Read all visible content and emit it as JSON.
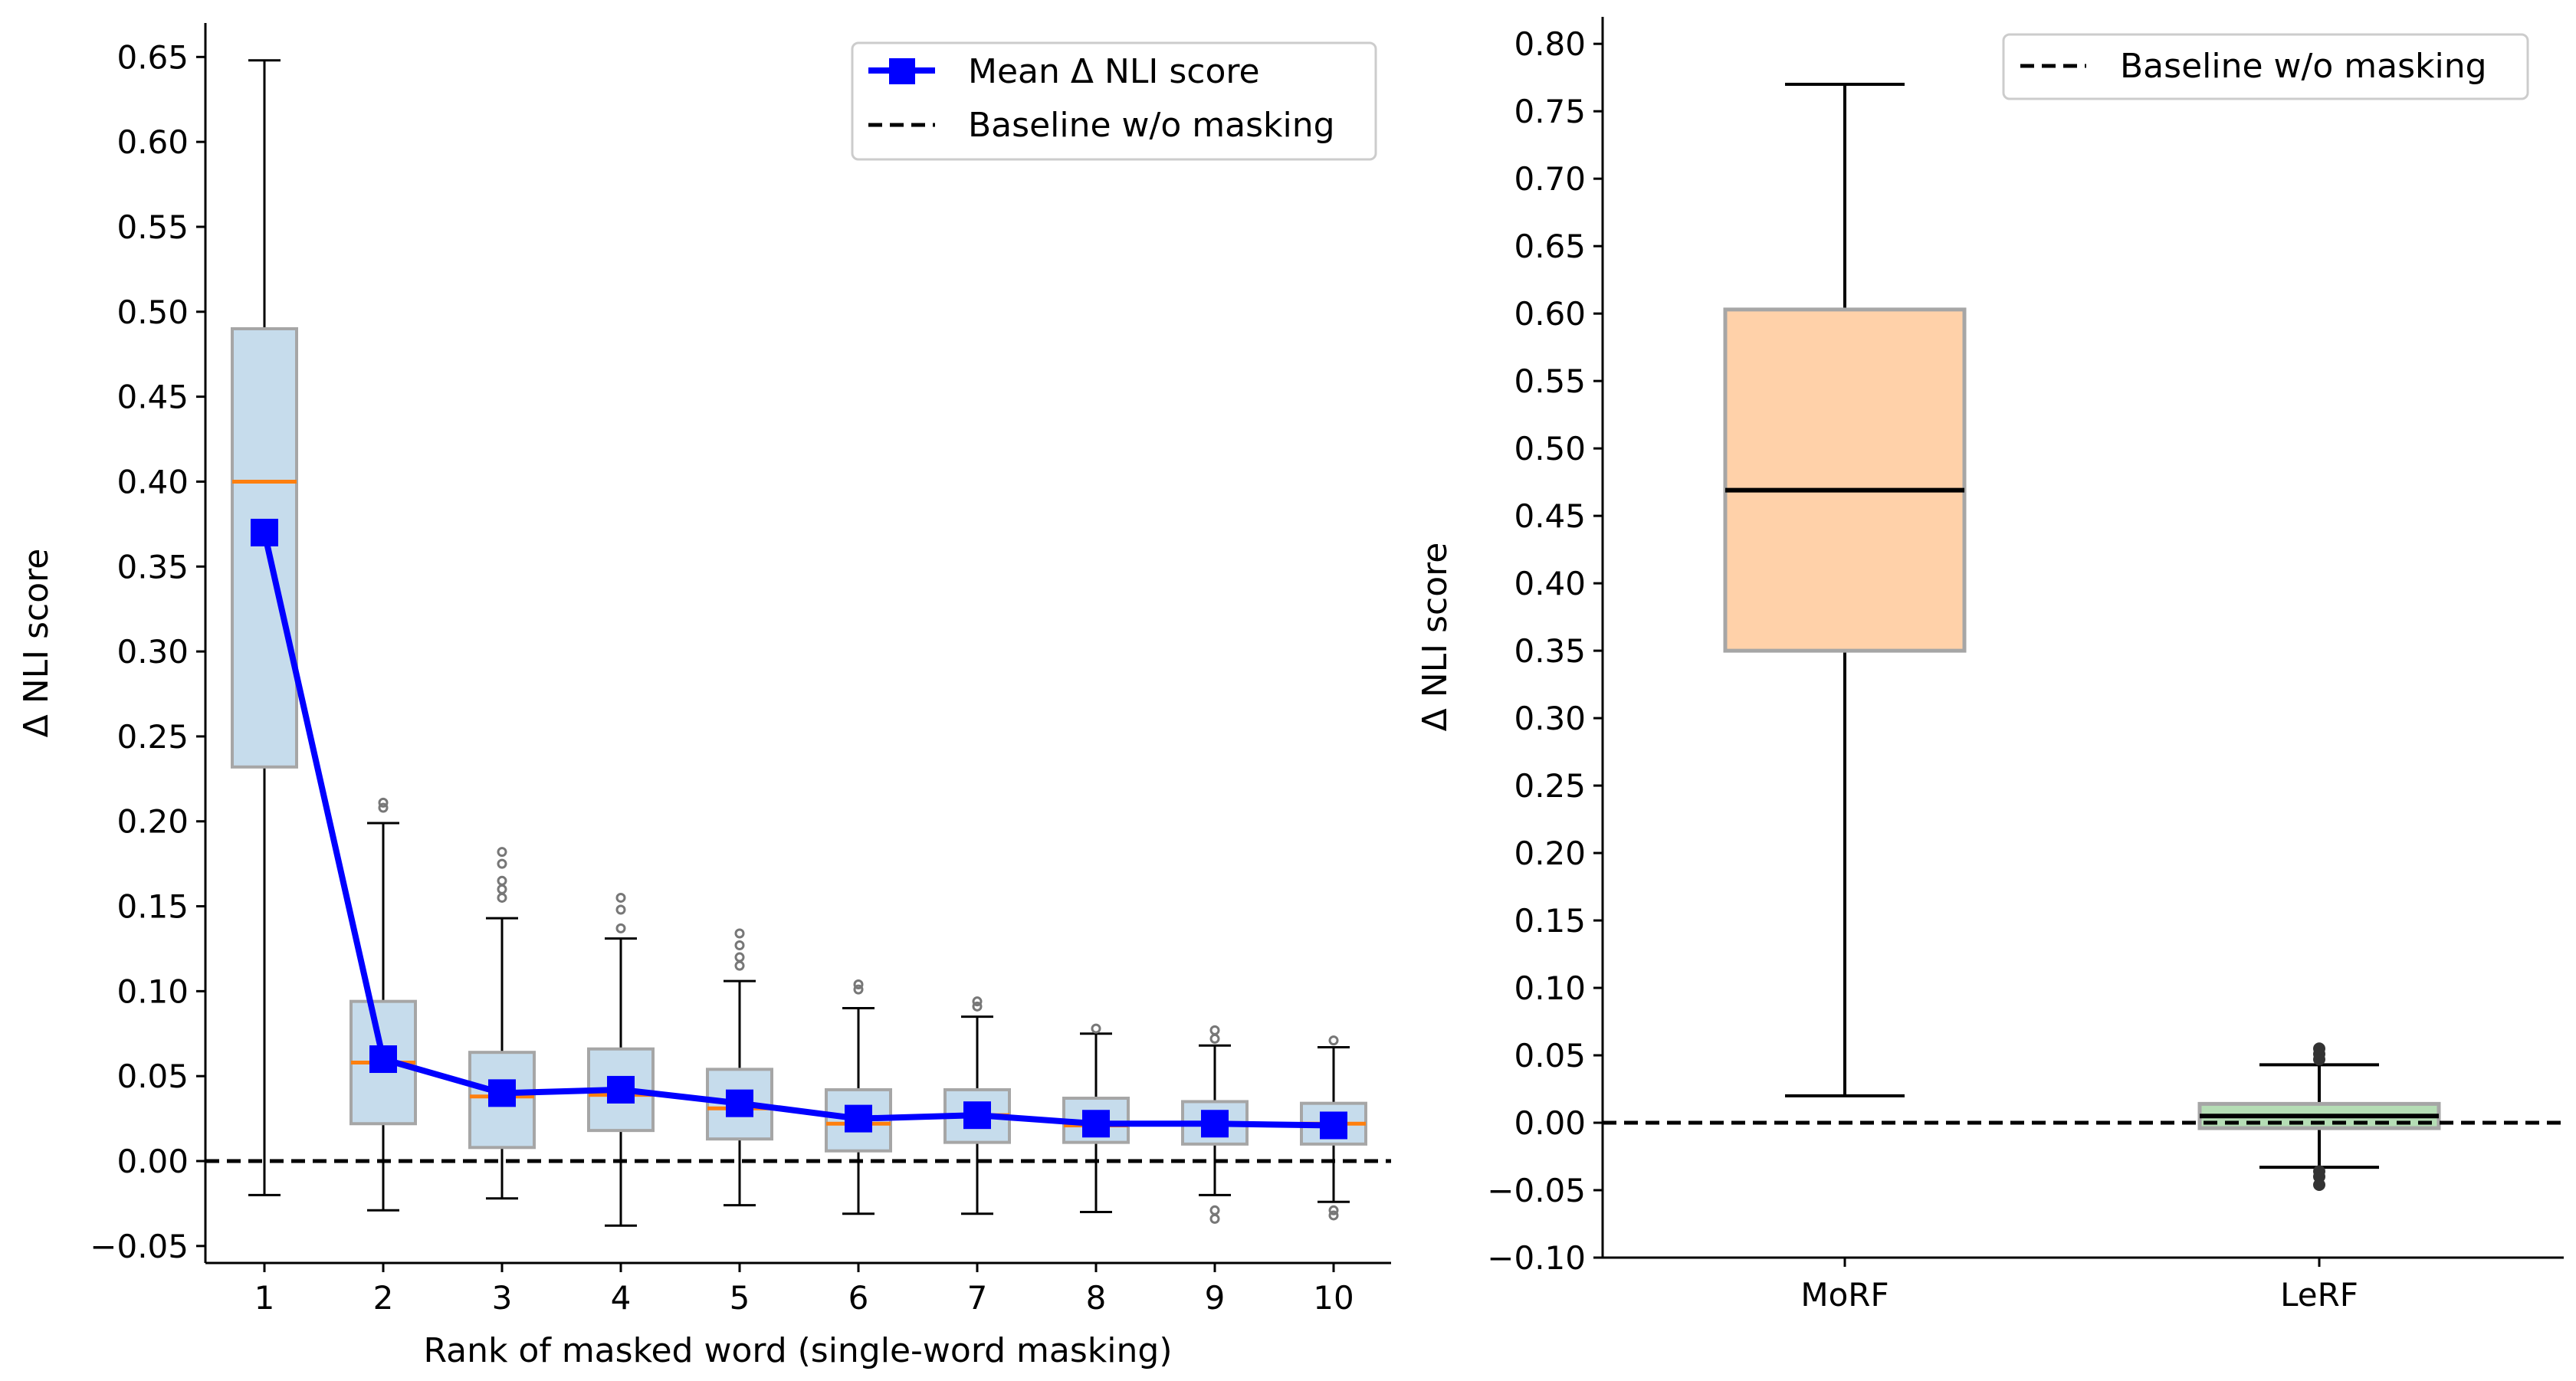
{
  "chart_data": [
    {
      "type": "box",
      "xlabel": "Rank of masked word (single-word masking)",
      "ylabel": "Δ NLI score",
      "ylim": [
        -0.06,
        0.67
      ],
      "yticks": [
        "−0.05",
        "0.00",
        "0.05",
        "0.10",
        "0.15",
        "0.20",
        "0.25",
        "0.30",
        "0.35",
        "0.40",
        "0.45",
        "0.50",
        "0.55",
        "0.60",
        "0.65"
      ],
      "categories": [
        "1",
        "2",
        "3",
        "4",
        "5",
        "6",
        "7",
        "8",
        "9",
        "10"
      ],
      "boxes": [
        {
          "category": "1",
          "whislo": -0.02,
          "q1": 0.232,
          "median": 0.4,
          "q3": 0.49,
          "whishi": 0.648,
          "fliers": []
        },
        {
          "category": "2",
          "whislo": -0.029,
          "q1": 0.022,
          "median": 0.058,
          "q3": 0.094,
          "whishi": 0.199,
          "fliers": [
            0.208,
            0.211
          ]
        },
        {
          "category": "3",
          "whislo": -0.022,
          "q1": 0.008,
          "median": 0.038,
          "q3": 0.064,
          "whishi": 0.143,
          "fliers": [
            0.155,
            0.16,
            0.165,
            0.175,
            0.182
          ]
        },
        {
          "category": "4",
          "whislo": -0.038,
          "q1": 0.018,
          "median": 0.039,
          "q3": 0.066,
          "whishi": 0.131,
          "fliers": [
            0.137,
            0.148,
            0.155
          ]
        },
        {
          "category": "5",
          "whislo": -0.026,
          "q1": 0.013,
          "median": 0.031,
          "q3": 0.054,
          "whishi": 0.106,
          "fliers": [
            0.115,
            0.12,
            0.127,
            0.134
          ]
        },
        {
          "category": "6",
          "whislo": -0.031,
          "q1": 0.006,
          "median": 0.022,
          "q3": 0.042,
          "whishi": 0.09,
          "fliers": [
            0.101,
            0.104
          ]
        },
        {
          "category": "7",
          "whislo": -0.031,
          "q1": 0.011,
          "median": 0.027,
          "q3": 0.042,
          "whishi": 0.085,
          "fliers": [
            0.091,
            0.094
          ]
        },
        {
          "category": "8",
          "whislo": -0.03,
          "q1": 0.011,
          "median": 0.021,
          "q3": 0.037,
          "whishi": 0.075,
          "fliers": [
            0.078
          ]
        },
        {
          "category": "9",
          "whislo": -0.02,
          "q1": 0.01,
          "median": 0.022,
          "q3": 0.035,
          "whishi": 0.068,
          "fliers": [
            0.072,
            0.077,
            -0.029,
            -0.034
          ]
        },
        {
          "category": "10",
          "whislo": -0.024,
          "q1": 0.01,
          "median": 0.022,
          "q3": 0.034,
          "whishi": 0.067,
          "fliers": [
            0.071,
            -0.029,
            -0.032
          ]
        }
      ],
      "series": [
        {
          "name": "Mean Δ NLI score",
          "type": "line",
          "color": "#0000ff",
          "values": [
            0.37,
            0.06,
            0.04,
            0.042,
            0.034,
            0.025,
            0.027,
            0.022,
            0.022,
            0.021
          ]
        }
      ],
      "reference_lines": [
        {
          "name": "Baseline w/o masking",
          "y": 0.0,
          "style": "dashed",
          "color": "#000000"
        }
      ],
      "legend": {
        "position": "top-right",
        "entries": [
          "Mean Δ NLI score",
          "Baseline w/o masking"
        ]
      },
      "colors": {
        "box_fill": "#c6dcec",
        "box_edge": "#a6a6a6",
        "median": "#ff7f0e",
        "whisker": "#000000",
        "flier": "#777777"
      },
      "grid": false
    },
    {
      "type": "box",
      "xlabel": "",
      "ylabel": "Δ NLI score",
      "ylim": [
        -0.1,
        0.82
      ],
      "yticks": [
        "−0.10",
        "−0.05",
        "0.00",
        "0.05",
        "0.10",
        "0.15",
        "0.20",
        "0.25",
        "0.30",
        "0.35",
        "0.40",
        "0.45",
        "0.50",
        "0.55",
        "0.60",
        "0.65",
        "0.70",
        "0.75",
        "0.80"
      ],
      "categories": [
        "MoRF",
        "LeRF"
      ],
      "boxes": [
        {
          "category": "MoRF",
          "whislo": 0.02,
          "q1": 0.35,
          "median": 0.469,
          "q3": 0.603,
          "whishi": 0.77,
          "fliers": [],
          "fill": "#ffd1a9",
          "median_color": "#000000"
        },
        {
          "category": "LeRF",
          "whislo": -0.033,
          "q1": -0.004,
          "median": 0.005,
          "q3": 0.014,
          "whishi": 0.043,
          "fliers": [
            0.047,
            0.051,
            0.055,
            -0.036,
            -0.04,
            -0.046
          ],
          "fill": "#b5ddb5",
          "median_color": "#000000"
        }
      ],
      "reference_lines": [
        {
          "name": "Baseline w/o masking",
          "y": 0.0,
          "style": "dashed",
          "color": "#000000"
        }
      ],
      "legend": {
        "position": "top-right",
        "entries": [
          "Baseline w/o masking"
        ]
      },
      "colors": {
        "box_edge": "#a6a6a6",
        "whisker": "#000000",
        "flier": "#333333"
      },
      "grid": false
    }
  ]
}
